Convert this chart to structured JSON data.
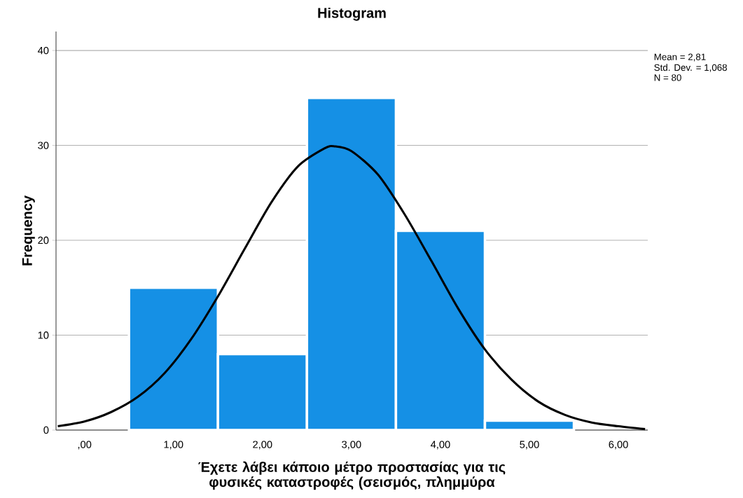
{
  "chart_data": {
    "type": "histogram",
    "title": "Histogram",
    "xlabel": "Έχετε λάβει κάποιο μέτρο προστασίας για τις φυσικές καταστροφές (σεισμός, πλημμύρα",
    "ylabel": "Frequency",
    "bins": [
      0.5,
      1.5,
      2.5,
      3.5,
      4.5,
      5.5
    ],
    "values": [
      15,
      8,
      35,
      21,
      1
    ],
    "color": "#1590e5",
    "series": [
      {
        "type": "line",
        "color": "#000000",
        "x": [
          -0.3,
          0,
          0.3,
          0.6,
          0.9,
          1.2,
          1.5,
          1.8,
          2.1,
          2.4,
          2.7,
          2.81,
          3.0,
          3.3,
          3.6,
          3.9,
          4.2,
          4.5,
          4.8,
          5.1,
          5.4,
          5.7,
          6.0,
          6.3
        ],
        "values": [
          0.4,
          0.9,
          1.9,
          3.5,
          6.0,
          9.6,
          14.1,
          19.1,
          24.0,
          27.8,
          29.7,
          29.9,
          29.4,
          26.9,
          22.7,
          17.8,
          12.8,
          8.5,
          5.3,
          3.0,
          1.6,
          0.8,
          0.4,
          0.1
        ]
      }
    ],
    "xlim": [
      -0.32,
      6.33
    ],
    "ylim": [
      0,
      42
    ],
    "xticks": [
      {
        "value": 0,
        "label": ",00"
      },
      {
        "value": 1,
        "label": "1,00"
      },
      {
        "value": 2,
        "label": "2,00"
      },
      {
        "value": 3,
        "label": "3,00"
      },
      {
        "value": 4,
        "label": "4,00"
      },
      {
        "value": 5,
        "label": "5,00"
      },
      {
        "value": 6,
        "label": "6,00"
      }
    ],
    "yticks": [
      0,
      10,
      20,
      30,
      40
    ],
    "grid": "y",
    "annotations": [
      "Mean = 2,81",
      "Std. Dev. = 1,068",
      "N = 80"
    ]
  }
}
